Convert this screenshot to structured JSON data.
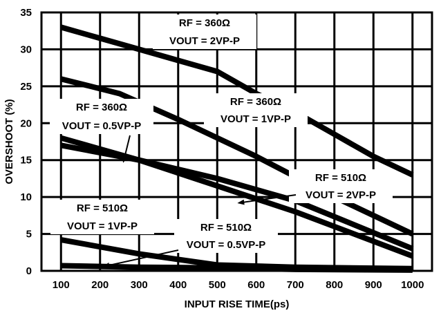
{
  "chart_data": {
    "type": "line",
    "title": "",
    "xlabel": "INPUT RISE TIME(ps)",
    "ylabel": "OVERSHOOT (%)",
    "xlim": [
      50,
      1050
    ],
    "ylim": [
      0,
      35
    ],
    "grid": true,
    "xticks": [
      100,
      200,
      300,
      400,
      500,
      600,
      700,
      800,
      900,
      1000
    ],
    "yticks": [
      0,
      5,
      10,
      15,
      20,
      25,
      30,
      35
    ],
    "series": [
      {
        "name": "RF = 360Ω VOUT = 2VP-P",
        "x": [
          100,
          200,
          300,
          400,
          500,
          600,
          700,
          800,
          900,
          1000
        ],
        "y": [
          33,
          31.5,
          30,
          28.5,
          27,
          24,
          21.5,
          18.5,
          15.5,
          13
        ]
      },
      {
        "name": "RF = 360Ω VOUT = 1VP-P",
        "x": [
          100,
          250,
          400,
          600,
          800,
          1000
        ],
        "y": [
          26,
          24,
          20.5,
          15.5,
          10,
          5
        ]
      },
      {
        "name": "RF = 360Ω VOUT = 0.5VP-P",
        "x": [
          100,
          300,
          500,
          700,
          1000
        ],
        "y": [
          17,
          15,
          12.5,
          9.5,
          3
        ]
      },
      {
        "name": "RF = 510Ω VOUT = 2VP-P",
        "x": [
          100,
          300,
          500,
          700,
          1000
        ],
        "y": [
          18,
          15,
          11.5,
          8,
          2
        ]
      },
      {
        "name": "RF = 510Ω VOUT = 1VP-P",
        "x": [
          100,
          300,
          500,
          700,
          1000
        ],
        "y": [
          4.2,
          2.3,
          0.8,
          0.5,
          0.3
        ]
      },
      {
        "name": "RF = 510Ω VOUT = 0.5VP-P",
        "x": [
          100,
          300,
          500,
          700,
          1000
        ],
        "y": [
          0.7,
          0.5,
          0.4,
          0.2,
          0.1
        ]
      }
    ],
    "annotations": [
      {
        "line1": "RF = 360Ω",
        "line2": "VOUT = 2VP-P"
      },
      {
        "line1": "RF = 360Ω",
        "line2": "VOUT = 1VP-P"
      },
      {
        "line1": "RF = 360Ω",
        "line2": "VOUT = 0.5VP-P"
      },
      {
        "line1": "RF = 510Ω",
        "line2": "VOUT = 2VP-P"
      },
      {
        "line1": "RF = 510Ω",
        "line2": "VOUT = 1VP-P"
      },
      {
        "line1": "RF = 510Ω",
        "line2": "VOUT = 0.5VP-P"
      }
    ]
  }
}
